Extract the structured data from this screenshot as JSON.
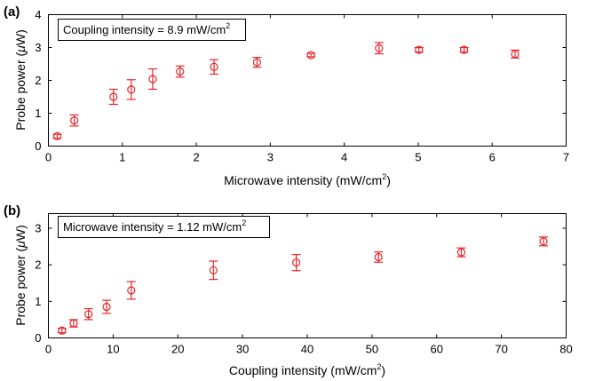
{
  "colors": {
    "series": "#e8262a",
    "axis": "#000000",
    "background": "#ffffff"
  },
  "chart_data": [
    {
      "type": "scatter",
      "panel_label": "(a)",
      "xlabel": "Microwave intensity (mW/cm",
      "xlabel_sup": "2",
      "xlabel_close": ")",
      "ylabel_pre": "Probe power (",
      "ylabel_mu": "μ",
      "ylabel_post": "W)",
      "annotation": "Coupling intensity = 8.9 mW/cm",
      "annotation_sup": "2",
      "xlim": [
        0,
        7
      ],
      "ylim": [
        0,
        4
      ],
      "xticks": [
        "0",
        "1",
        "2",
        "3",
        "4",
        "5",
        "6",
        "7"
      ],
      "yticks": [
        "0",
        "1",
        "2",
        "3",
        "4"
      ],
      "grid": false,
      "legend": "none",
      "series": [
        {
          "marker": "circle",
          "x": [
            0.12,
            0.35,
            0.88,
            1.12,
            1.41,
            1.78,
            2.24,
            2.82,
            3.55,
            4.47,
            5.01,
            5.62,
            6.31
          ],
          "y": [
            0.3,
            0.78,
            1.5,
            1.72,
            2.04,
            2.27,
            2.41,
            2.55,
            2.77,
            2.98,
            2.93,
            2.93,
            2.8
          ],
          "err": [
            0.06,
            0.17,
            0.23,
            0.3,
            0.31,
            0.17,
            0.22,
            0.15,
            0.05,
            0.17,
            0.07,
            0.07,
            0.12
          ]
        }
      ]
    },
    {
      "type": "scatter",
      "panel_label": "(b)",
      "xlabel": "Coupling intensity (mW/cm",
      "xlabel_sup": "2",
      "xlabel_close": ")",
      "ylabel_pre": "Probe power (",
      "ylabel_mu": "μ",
      "ylabel_post": "W)",
      "annotation": "Microwave intensity = 1.12 mW/cm",
      "annotation_sup": "2",
      "xlim": [
        0,
        80
      ],
      "ylim": [
        0,
        3.4
      ],
      "xticks": [
        "0",
        "10",
        "20",
        "30",
        "40",
        "50",
        "60",
        "70",
        "80"
      ],
      "yticks": [
        "0",
        "1",
        "2",
        "3"
      ],
      "grid": false,
      "legend": "none",
      "series": [
        {
          "marker": "circle",
          "x": [
            2.1,
            3.9,
            6.2,
            9.0,
            12.8,
            25.5,
            38.3,
            51.0,
            63.8,
            76.5
          ],
          "y": [
            0.2,
            0.4,
            0.65,
            0.85,
            1.3,
            1.85,
            2.06,
            2.21,
            2.34,
            2.64
          ],
          "err": [
            0.06,
            0.1,
            0.15,
            0.18,
            0.24,
            0.25,
            0.22,
            0.14,
            0.12,
            0.12
          ]
        }
      ]
    }
  ]
}
